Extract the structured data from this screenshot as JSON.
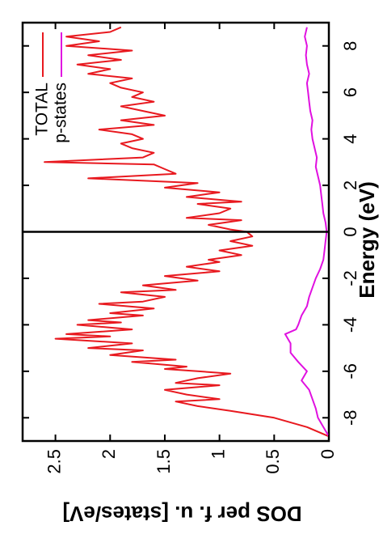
{
  "chart_data": {
    "type": "line",
    "orientation": "rotated-90-ccw",
    "xlabel": "Energy (eV)",
    "ylabel": "DOS per f. u. [states/eV]",
    "xlim": [
      -9,
      9
    ],
    "ylim": [
      0,
      2.8
    ],
    "xticks": [
      -8,
      -6,
      -4,
      -2,
      0,
      2,
      4,
      6,
      8
    ],
    "yticks": [
      0,
      0.5,
      1,
      1.5,
      2,
      2.5
    ],
    "xtick_labels": [
      "-8",
      "-6",
      "-4",
      "-2",
      "0",
      "2",
      "4",
      "6",
      "8"
    ],
    "ytick_labels": [
      "0",
      "0.5",
      "1",
      "1.5",
      "2",
      "2.5"
    ],
    "vline_x": 0,
    "legend_position": "top-right",
    "grid": false,
    "series": [
      {
        "name": "TOTAL",
        "color": "#e8191f",
        "x": [
          -8.8,
          -8.4,
          -8.0,
          -7.7,
          -7.5,
          -7.3,
          -7.2,
          -7.0,
          -6.8,
          -6.6,
          -6.5,
          -6.3,
          -6.1,
          -6.0,
          -5.9,
          -5.8,
          -5.6,
          -5.5,
          -5.3,
          -5.1,
          -5.0,
          -4.8,
          -4.6,
          -4.5,
          -4.4,
          -4.3,
          -4.2,
          -4.0,
          -3.9,
          -3.8,
          -3.6,
          -3.5,
          -3.3,
          -3.1,
          -3.0,
          -2.8,
          -2.6,
          -2.5,
          -2.3,
          -2.1,
          -1.9,
          -1.7,
          -1.5,
          -1.3,
          -1.2,
          -1.0,
          -0.8,
          -0.6,
          -0.4,
          -0.2,
          0.0,
          0.1,
          0.3,
          0.5,
          0.6,
          0.8,
          1.0,
          1.2,
          1.3,
          1.5,
          1.7,
          1.9,
          2.1,
          2.3,
          2.5,
          2.7,
          2.9,
          3.0,
          3.2,
          3.4,
          3.6,
          3.8,
          4.0,
          4.2,
          4.4,
          4.6,
          4.8,
          5.0,
          5.2,
          5.4,
          5.6,
          5.8,
          6.0,
          6.2,
          6.4,
          6.6,
          6.8,
          7.0,
          7.2,
          7.4,
          7.6,
          7.8,
          8.0,
          8.2,
          8.4,
          8.6,
          8.8
        ],
        "y": [
          0.0,
          0.2,
          0.5,
          0.9,
          1.2,
          1.4,
          1.0,
          1.3,
          1.5,
          1.0,
          1.4,
          1.2,
          0.9,
          1.2,
          1.5,
          1.3,
          1.8,
          1.4,
          2.0,
          1.7,
          2.2,
          1.8,
          2.5,
          2.0,
          2.4,
          2.1,
          1.8,
          2.3,
          1.9,
          2.2,
          1.7,
          2.0,
          1.6,
          2.1,
          1.7,
          1.5,
          1.9,
          1.4,
          1.7,
          1.2,
          1.5,
          1.0,
          1.3,
          1.0,
          1.1,
          0.8,
          1.0,
          0.7,
          0.9,
          0.7,
          0.75,
          0.9,
          1.1,
          0.8,
          1.3,
          1.0,
          0.9,
          1.2,
          0.8,
          1.3,
          1.0,
          1.5,
          1.2,
          2.2,
          1.4,
          1.5,
          1.6,
          2.6,
          1.7,
          1.6,
          1.8,
          1.9,
          1.7,
          1.8,
          2.1,
          1.6,
          1.9,
          1.5,
          1.7,
          1.9,
          1.6,
          1.8,
          1.7,
          1.9,
          2.0,
          1.8,
          2.2,
          2.0,
          2.3,
          1.9,
          2.2,
          1.8,
          2.4,
          2.1,
          2.4,
          2.0,
          1.9
        ]
      },
      {
        "name": "p-states",
        "color": "#e010e0",
        "x": [
          -8.8,
          -8.4,
          -8.0,
          -7.6,
          -7.2,
          -6.8,
          -6.4,
          -6.0,
          -5.6,
          -5.2,
          -4.8,
          -4.4,
          -4.2,
          -4.0,
          -3.6,
          -3.2,
          -2.8,
          -2.4,
          -2.0,
          -1.6,
          -1.2,
          -0.8,
          -0.4,
          0.0,
          0.4,
          0.8,
          1.2,
          1.6,
          2.0,
          2.4,
          2.8,
          3.2,
          3.6,
          4.0,
          4.4,
          4.8,
          5.2,
          5.6,
          6.0,
          6.4,
          6.8,
          7.2,
          7.6,
          8.0,
          8.4,
          8.8
        ],
        "y": [
          0.0,
          0.05,
          0.1,
          0.12,
          0.15,
          0.18,
          0.25,
          0.2,
          0.28,
          0.35,
          0.35,
          0.4,
          0.3,
          0.28,
          0.25,
          0.2,
          0.18,
          0.15,
          0.12,
          0.08,
          0.05,
          0.04,
          0.03,
          0.02,
          0.03,
          0.05,
          0.06,
          0.07,
          0.08,
          0.1,
          0.12,
          0.11,
          0.13,
          0.15,
          0.16,
          0.15,
          0.17,
          0.18,
          0.19,
          0.2,
          0.18,
          0.2,
          0.21,
          0.2,
          0.22,
          0.2
        ]
      }
    ]
  }
}
